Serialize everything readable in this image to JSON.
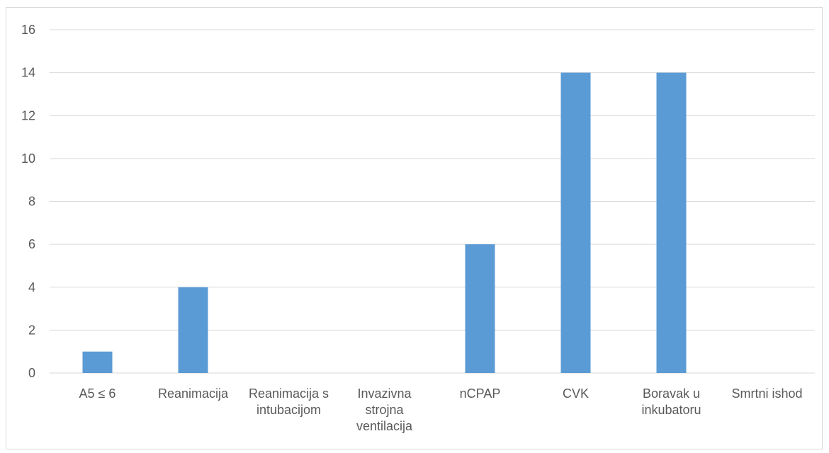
{
  "chart_data": {
    "type": "bar",
    "title": "",
    "xlabel": "",
    "ylabel": "",
    "categories": [
      [
        "A5 ≤ 6"
      ],
      [
        "Reanimacija"
      ],
      [
        "Reanimacija s",
        "intubacijom"
      ],
      [
        "Invazivna",
        "strojna",
        "ventilacija"
      ],
      [
        "nCPAP"
      ],
      [
        "CVK"
      ],
      [
        "Boravak u",
        "inkubatoru"
      ],
      [
        "Smrtni ishod"
      ]
    ],
    "values": [
      1,
      4,
      0,
      0,
      6,
      14,
      14,
      0
    ],
    "ylim": [
      0,
      16
    ],
    "yticks": [
      0,
      2,
      4,
      6,
      8,
      10,
      12,
      14,
      16
    ],
    "grid": true,
    "legend": "none",
    "colors": {
      "bar": "#5b9bd5",
      "grid": "#d9d9d9",
      "axis": "#d9d9d9",
      "text": "#595959"
    }
  }
}
